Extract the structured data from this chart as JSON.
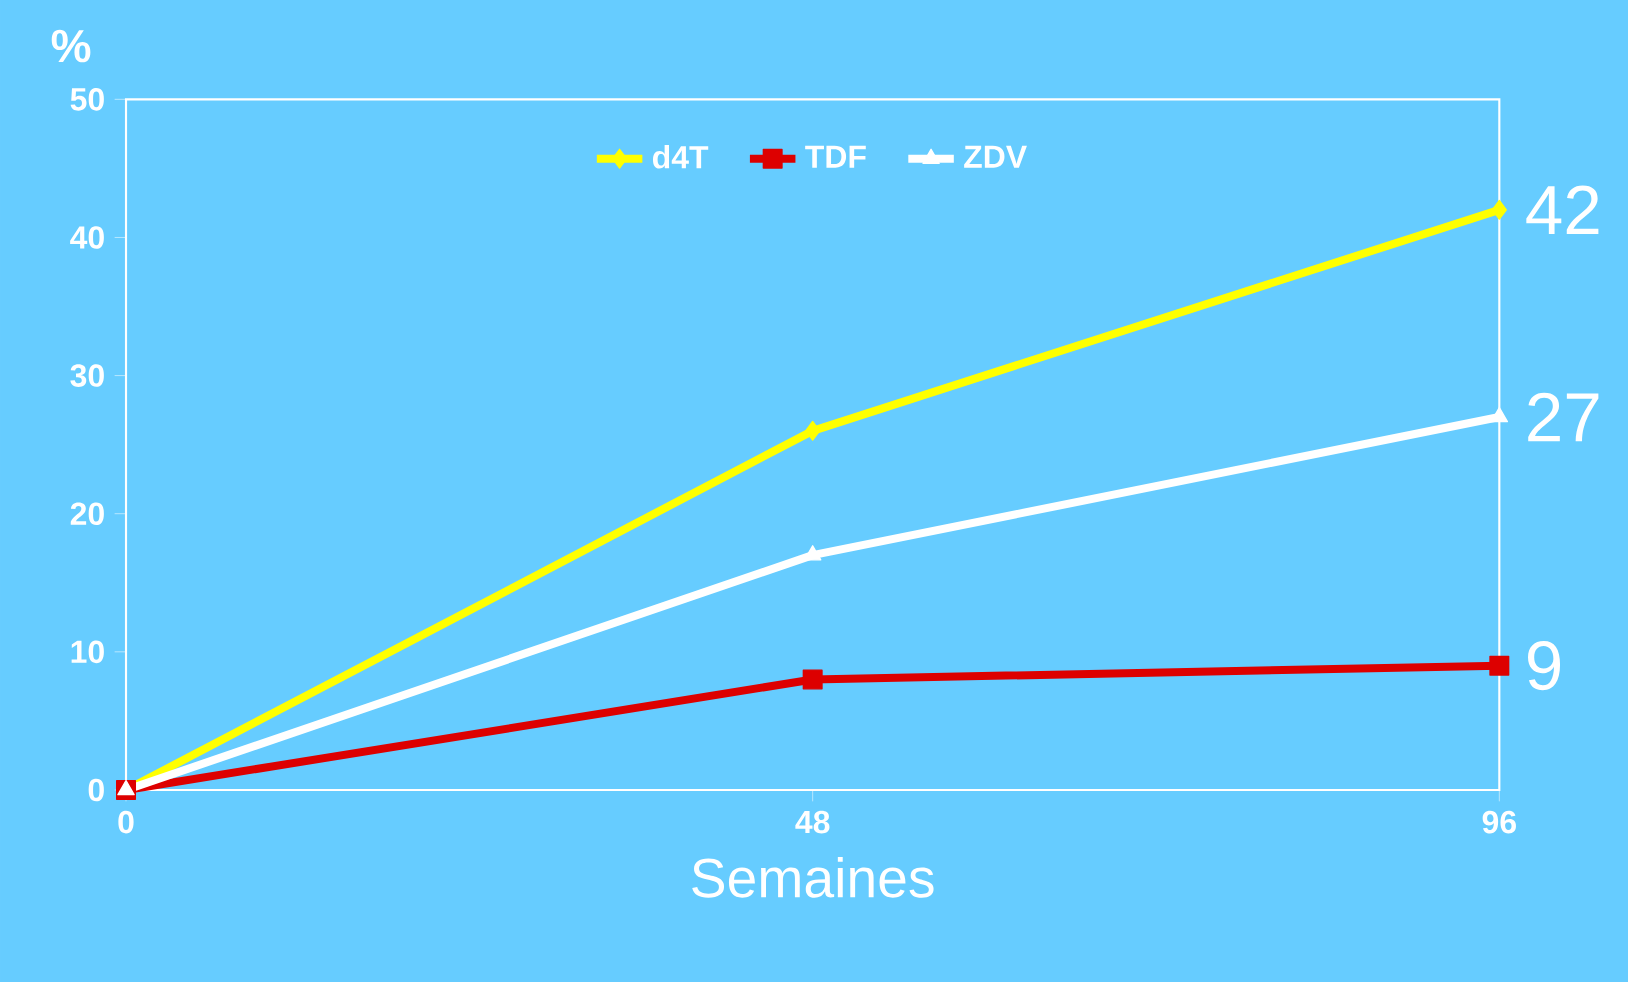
{
  "chart_data": {
    "type": "line",
    "ylabel": "%",
    "xlabel": "Semaines",
    "x": [
      0,
      48,
      96
    ],
    "xlim": [
      0,
      96
    ],
    "xticks": [
      0,
      48,
      96
    ],
    "ylim": [
      0,
      50
    ],
    "yticks": [
      0,
      10,
      20,
      30,
      40,
      50
    ],
    "legend": "top",
    "grid": false,
    "series": [
      {
        "name": "d4T",
        "color": "#ffff00",
        "marker": "diamond",
        "values": [
          0,
          26,
          42
        ],
        "value_labels": [
          null,
          null,
          "42"
        ]
      },
      {
        "name": "TDF",
        "color": "#dd0000",
        "marker": "square",
        "values": [
          0,
          8,
          9
        ],
        "value_labels": [
          null,
          null,
          "9"
        ]
      },
      {
        "name": "ZDV",
        "color": "#ffffff",
        "marker": "triangle",
        "values": [
          0,
          17,
          27
        ],
        "value_labels": [
          null,
          null,
          "27"
        ]
      }
    ]
  }
}
